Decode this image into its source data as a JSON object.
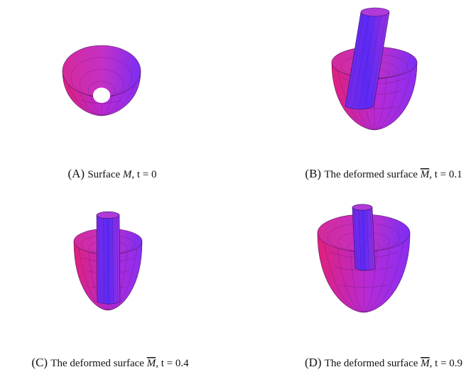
{
  "figures": [
    {
      "label": "(A)",
      "text": "Surface",
      "symbol": "M",
      "overline": false,
      "rest": ", t = 0"
    },
    {
      "label": "(B)",
      "text": "The deformed surface",
      "symbol": "M",
      "overline": true,
      "rest": ", t = 0.1"
    },
    {
      "label": "(C)",
      "text": "The deformed surface",
      "symbol": "M",
      "overline": true,
      "rest": ", t = 0.4"
    },
    {
      "label": "(D)",
      "text": "The deformed surface",
      "symbol": "M",
      "overline": true,
      "rest": ", t = 0.9"
    }
  ]
}
